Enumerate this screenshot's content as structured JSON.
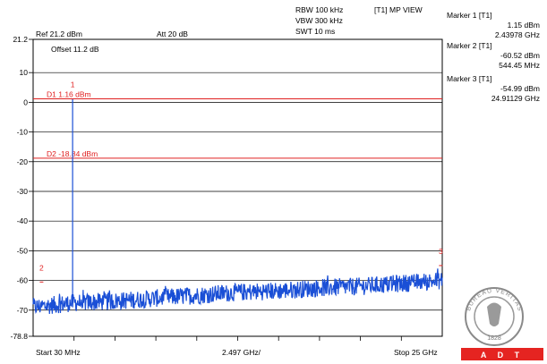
{
  "header": {
    "ref_level": "Ref 21.2 dBm",
    "attenuation": "Att  20 dB",
    "rbw": "RBW 100 kHz",
    "vbw": "VBW 300 kHz",
    "swt": "SWT 10 ms",
    "trace_mode": "[T1] MP VIEW",
    "offset": "Offset 11.2 dB"
  },
  "markers_panel": [
    {
      "title": "Marker 1 [T1]",
      "level": "1.15 dBm",
      "freq": "2.43978 GHz"
    },
    {
      "title": "Marker 2 [T1]",
      "level": "-60.52 dBm",
      "freq": "544.45 MHz"
    },
    {
      "title": "Marker 3 [T1]",
      "level": "-54.99 dBm",
      "freq": "24.91129 GHz"
    }
  ],
  "footer": {
    "start": "Start 30 MHz",
    "center": "2.497 GHz/",
    "stop": "Stop 25 GHz"
  },
  "logo": {
    "ring_text": "BUREAU VERITAS",
    "year": "1828",
    "brand": "A D T",
    "brand_color": "#e52421"
  },
  "chart_data": {
    "type": "line",
    "x_range_mhz": [
      30,
      25000
    ],
    "ylim": [
      -78.8,
      21.2
    ],
    "ytick_labels": [
      "21.2",
      "10",
      "0",
      "-10",
      "-20",
      "-30",
      "-40",
      "-50",
      "-60",
      "-70",
      "-78.8"
    ],
    "yticks": [
      21.2,
      10,
      0,
      -10,
      -20,
      -30,
      -40,
      -50,
      -60,
      -70,
      -78.8
    ],
    "trace_color": "#1a4fd6",
    "display_lines": [
      {
        "label": "D1 1.16 dBm",
        "value": 1.16,
        "color": "#e02020"
      },
      {
        "label": "D2 -18.84 dBm",
        "value": -18.84,
        "color": "#e02020"
      }
    ],
    "markers": [
      {
        "id": "1",
        "freq_mhz": 2439.78,
        "level": 1.15
      },
      {
        "id": "2",
        "freq_mhz": 544.45,
        "level": -60.52
      },
      {
        "id": "3",
        "freq_mhz": 24911.29,
        "level": -54.99
      }
    ],
    "noise_floor": {
      "x_mhz": [
        30,
        2500,
        5000,
        7500,
        10000,
        12500,
        15000,
        17500,
        20000,
        22500,
        25000
      ],
      "y_dbm": [
        -69,
        -67.5,
        -67,
        -66,
        -65,
        -64,
        -63.5,
        -62.5,
        -62,
        -61,
        -60
      ]
    },
    "grid": true
  }
}
